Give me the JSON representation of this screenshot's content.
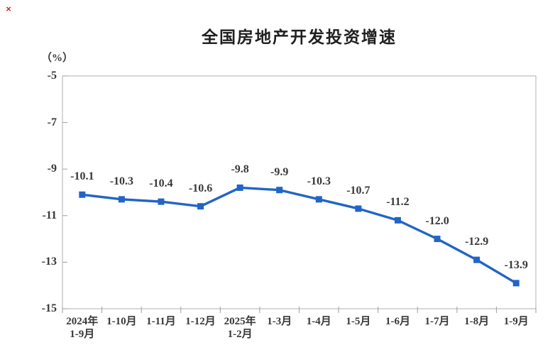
{
  "page": {
    "broken_image_mark": "×"
  },
  "chart_data": {
    "type": "line",
    "title": "全国房地产开发投资增速",
    "unit_label": "（%）",
    "categories": [
      "2024年\n1-9月",
      "1-10月",
      "1-11月",
      "1-12月",
      "2025年\n1-2月",
      "1-3月",
      "1-4月",
      "1-5月",
      "1-6月",
      "1-7月",
      "1-8月",
      "1-9月"
    ],
    "values": [
      -10.1,
      -10.3,
      -10.4,
      -10.6,
      -9.8,
      -9.9,
      -10.3,
      -10.7,
      -11.2,
      -12.0,
      -12.9,
      -13.9
    ],
    "data_labels": [
      "-10.1",
      "-10.3",
      "-10.4",
      "-10.6",
      "-9.8",
      "-9.9",
      "-10.3",
      "-10.7",
      "-11.2",
      "-12.0",
      "-12.9",
      "-13.9"
    ],
    "xlabel": "",
    "ylabel": "（%）",
    "ylim": [
      -15,
      -5
    ],
    "yticks": [
      -5,
      -7,
      -9,
      -11,
      -13,
      -15
    ],
    "grid": false,
    "legend": "none",
    "marker": "square",
    "line_color": "#2265C5",
    "axis_color": "#b2b2b2",
    "tick_color": "#9e9e9e",
    "text_color": "#383838"
  }
}
